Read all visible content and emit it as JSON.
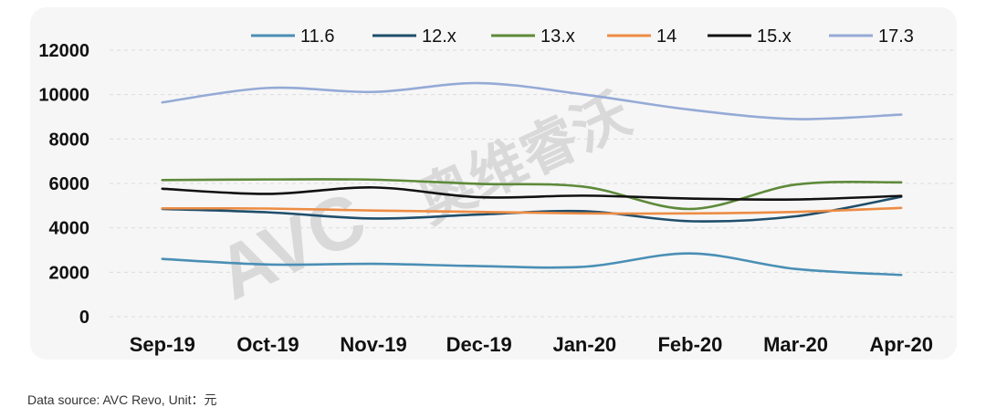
{
  "chart_data": {
    "type": "line",
    "categories": [
      "Sep-19",
      "Oct-19",
      "Nov-19",
      "Dec-19",
      "Jan-20",
      "Feb-20",
      "Mar-20",
      "Apr-20"
    ],
    "ylim": [
      0,
      12000
    ],
    "yticks": [
      0,
      2000,
      4000,
      6000,
      8000,
      10000,
      12000
    ],
    "grid": true,
    "legend_position": "top",
    "series": [
      {
        "name": "11.6",
        "color": "#4a8fb5",
        "values": [
          2600,
          2350,
          2380,
          2280,
          2250,
          2850,
          2150,
          1880
        ]
      },
      {
        "name": "12.x",
        "color": "#1f4e6b",
        "values": [
          4850,
          4700,
          4420,
          4600,
          4750,
          4300,
          4520,
          5400
        ]
      },
      {
        "name": "13.x",
        "color": "#5e8a3a",
        "values": [
          6150,
          6180,
          6170,
          5980,
          5850,
          4850,
          5950,
          6050
        ]
      },
      {
        "name": "14",
        "color": "#ed8c44",
        "values": [
          4880,
          4870,
          4780,
          4720,
          4650,
          4650,
          4720,
          4900
        ]
      },
      {
        "name": "15.x",
        "color": "#111111",
        "values": [
          5760,
          5530,
          5820,
          5380,
          5450,
          5320,
          5280,
          5440
        ]
      },
      {
        "name": "17.3",
        "color": "#95aad6",
        "values": [
          9650,
          10300,
          10120,
          10520,
          10000,
          9320,
          8900,
          9100
        ]
      }
    ]
  },
  "watermark": {
    "latin": "AVC",
    "cjk": "奥维睿沃"
  },
  "footer": {
    "source": "Data source: AVC Revo,    Unit：元"
  }
}
